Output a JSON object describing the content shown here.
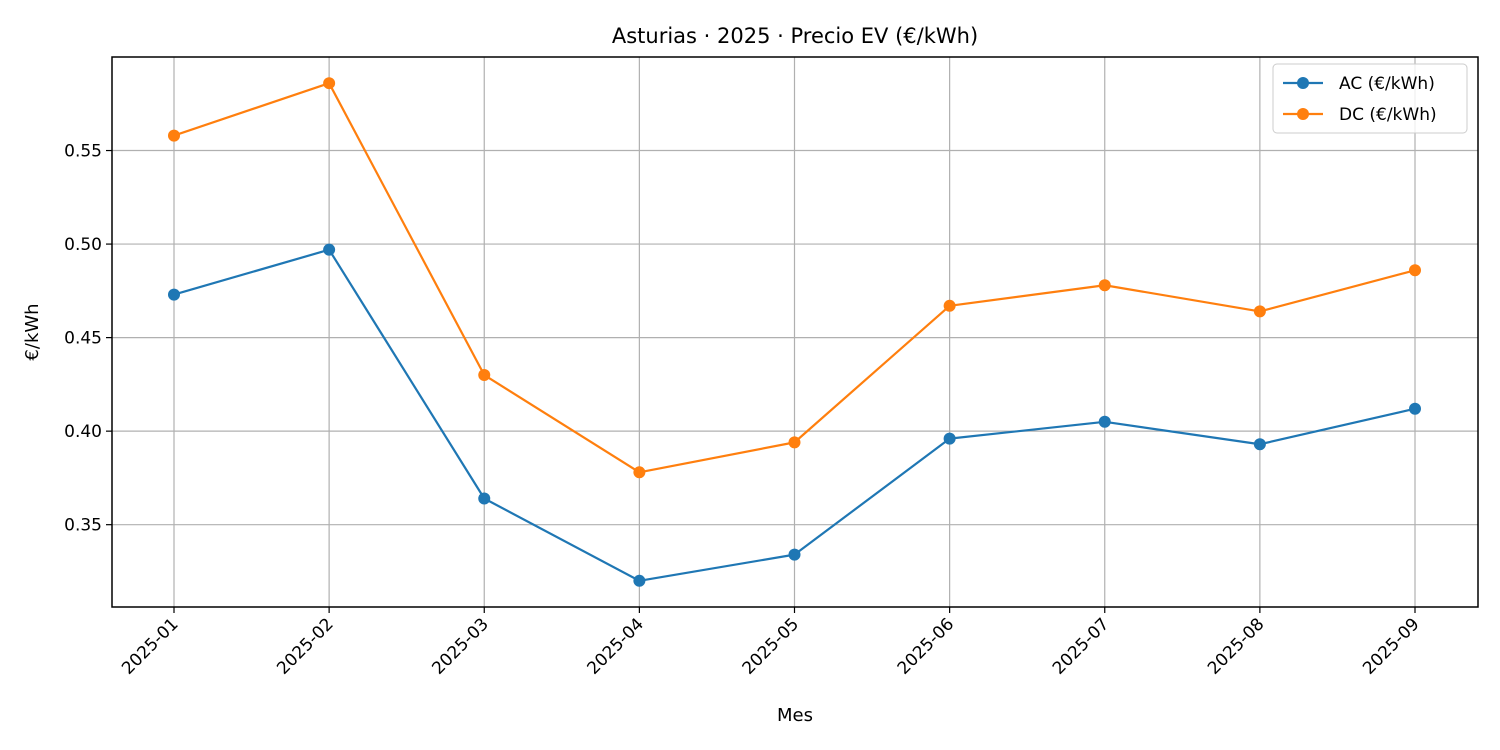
{
  "chart_data": {
    "type": "line",
    "title": "Asturias · 2025 · Precio EV (€/kWh)",
    "xlabel": "Mes",
    "ylabel": "€/kWh",
    "categories": [
      "2025-01",
      "2025-02",
      "2025-03",
      "2025-04",
      "2025-05",
      "2025-06",
      "2025-07",
      "2025-08",
      "2025-09"
    ],
    "series": [
      {
        "name": "AC (€/kWh)",
        "color": "#1f77b4",
        "values": [
          0.473,
          0.497,
          0.364,
          0.32,
          0.334,
          0.396,
          0.405,
          0.393,
          0.412
        ]
      },
      {
        "name": "DC (€/kWh)",
        "color": "#ff7f0e",
        "values": [
          0.558,
          0.586,
          0.43,
          0.378,
          0.394,
          0.467,
          0.478,
          0.464,
          0.486
        ]
      }
    ],
    "ylim": [
      0.306,
      0.6
    ],
    "yticks": [
      "0.35",
      "0.40",
      "0.45",
      "0.50",
      "0.55"
    ],
    "grid": true,
    "legend_position": "top-right",
    "marker": "circle"
  }
}
